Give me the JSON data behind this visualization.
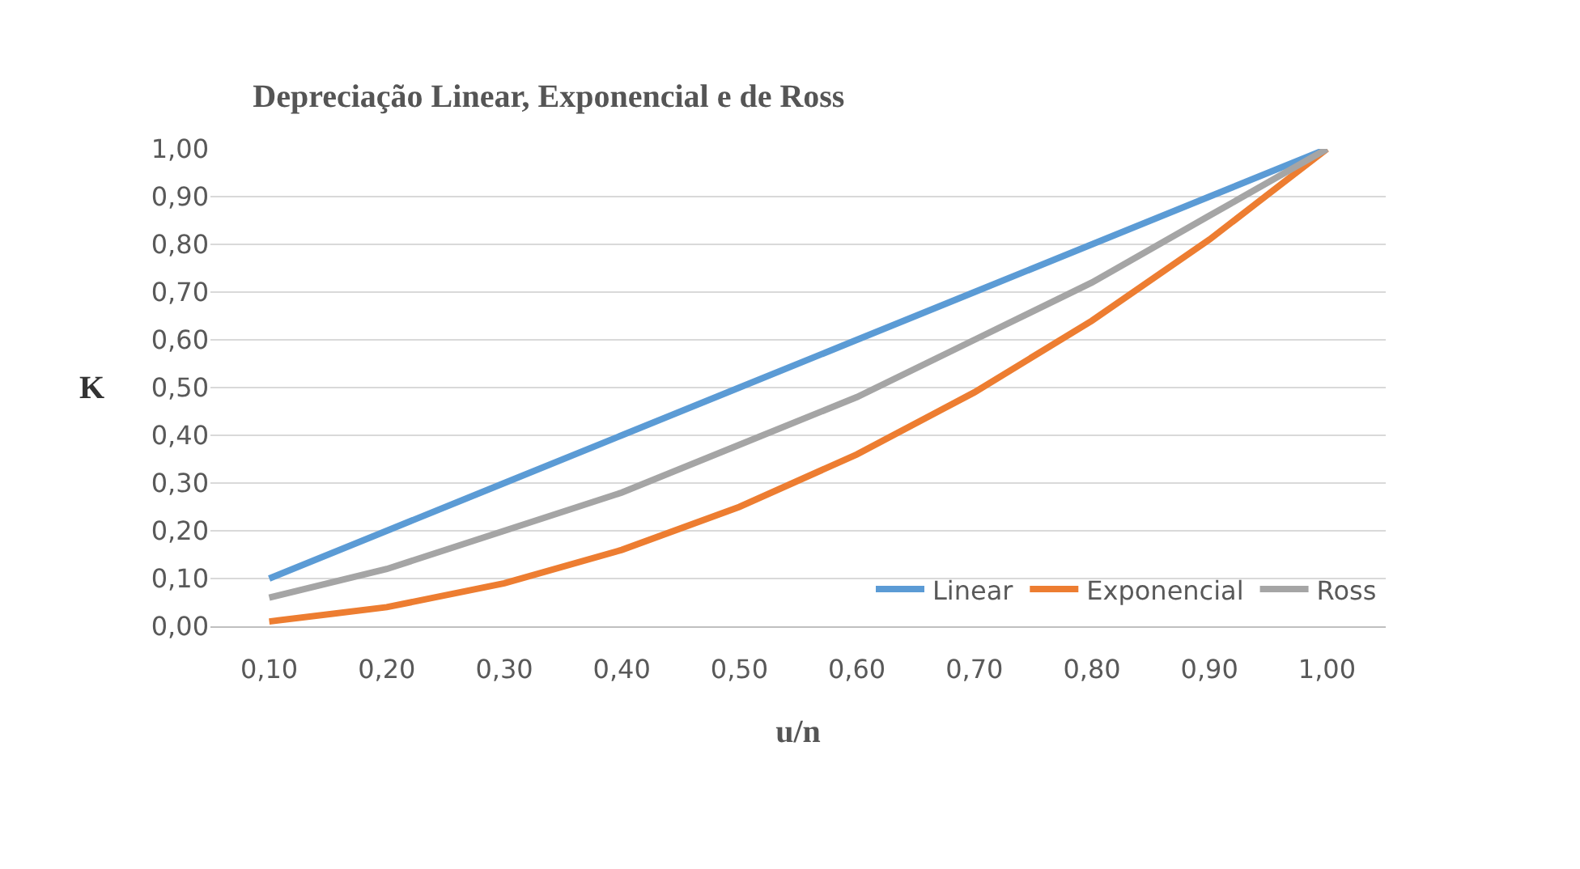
{
  "chart_data": {
    "type": "line",
    "title": "Depreciação Linear, Exponencial e de Ross",
    "xlabel": "u/n",
    "ylabel": "K",
    "categories": [
      "0,10",
      "0,20",
      "0,30",
      "0,40",
      "0,50",
      "0,60",
      "0,70",
      "0,80",
      "0,90",
      "1,00"
    ],
    "series": [
      {
        "name": "Linear",
        "color": "#5b9bd5",
        "values": [
          0.1,
          0.2,
          0.3,
          0.4,
          0.5,
          0.6,
          0.7,
          0.8,
          0.9,
          1
        ]
      },
      {
        "name": "Exponencial",
        "color": "#ed7d31",
        "values": [
          0.01,
          0.04,
          0.09,
          0.16,
          0.25,
          0.36,
          0.49,
          0.64,
          0.81,
          1
        ]
      },
      {
        "name": "Ross",
        "color": "#a5a5a5",
        "values": [
          0.06,
          0.12,
          0.2,
          0.28,
          0.38,
          0.48,
          0.6,
          0.72,
          0.86,
          1
        ]
      }
    ],
    "ylim": [
      0,
      1
    ],
    "yticks": [
      {
        "value": 0,
        "label": "0,00"
      },
      {
        "value": 0.1,
        "label": "0,10"
      },
      {
        "value": 0.2,
        "label": "0,20"
      },
      {
        "value": 0.3,
        "label": "0,30"
      },
      {
        "value": 0.4,
        "label": "0,40"
      },
      {
        "value": 0.5,
        "label": "0,50"
      },
      {
        "value": 0.6,
        "label": "0,60"
      },
      {
        "value": 0.7,
        "label": "0,70"
      },
      {
        "value": 0.8,
        "label": "0,80"
      },
      {
        "value": 0.9,
        "label": "0,90"
      },
      {
        "value": 1,
        "label": "1,00"
      }
    ],
    "grid": "y",
    "legend": "bottom right",
    "marker": "none",
    "line_style": "solid"
  }
}
